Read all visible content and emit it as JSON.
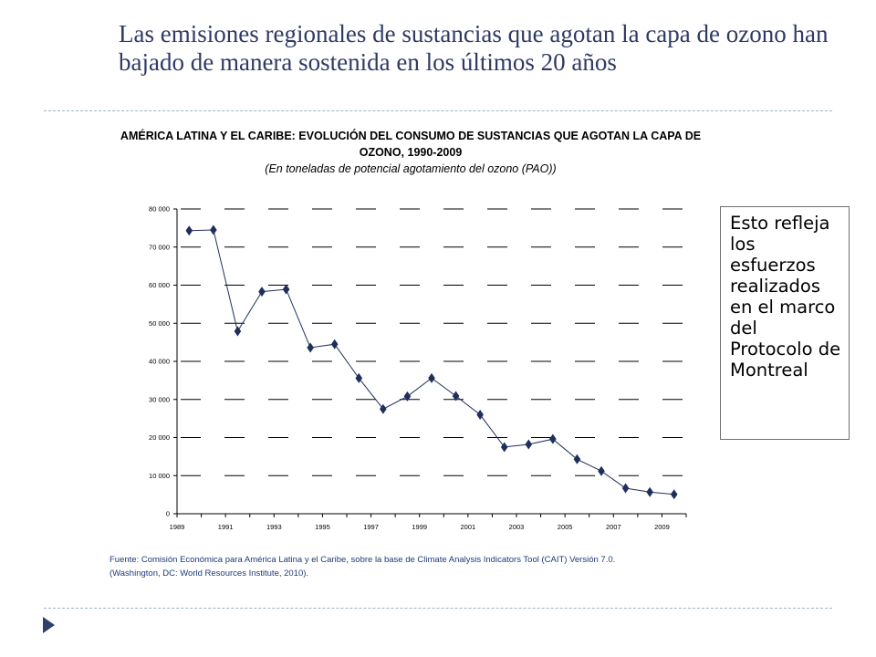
{
  "slide": {
    "title": "Las emisiones regionales de sustancias que agotan la capa de ozono han bajado de manera sostenida en los últimos 20 años",
    "note": "Esto refleja los esfuerzos realizados en el marco del Protocolo de Montreal",
    "source_line1": "Fuente: Comisión Económica para América Latina y el Caribe, sobre la base de Climate Analysis Indicators Tool (CAIT) Versión 7.0.",
    "source_line2": "(Washington, DC: World Resources Institute, 2010).",
    "accent_color": "#2f3a64",
    "divider_color": "#9db3c7",
    "bullet_icon": "triangle-bullet-icon"
  },
  "chart_data": {
    "type": "line",
    "title": "AMÉRICA LATINA Y EL CARIBE: EVOLUCIÓN DEL CONSUMO DE SUSTANCIAS QUE AGOTAN LA CAPA DE OZONO, 1990-2009",
    "subtitle": "(En toneladas de potencial agotamiento del ozono (PAO))",
    "xlabel": "",
    "ylabel": "",
    "x_ticks": [
      "1989",
      "1991",
      "1993",
      "1995",
      "1997",
      "1999",
      "2001",
      "2003",
      "2005",
      "2007",
      "2009"
    ],
    "y_ticks": [
      "0",
      "10 000",
      "20 000",
      "30 000",
      "40 000",
      "50 000",
      "60 000",
      "70 000",
      "80 000"
    ],
    "xlim": [
      1989,
      2009
    ],
    "ylim": [
      0,
      80000
    ],
    "grid": "horizontal-dashed",
    "line_color": "#1f2f5c",
    "series": [
      {
        "x": [
          1989.5,
          1990.5,
          1991.5,
          1992.5,
          1993.5,
          1994.5,
          1995.5,
          1996.5,
          1997.5,
          1998.5,
          1999.5,
          2000.5,
          2001.5,
          2002.5,
          2003.5,
          2004.5,
          2005.5,
          2006.5,
          2007.5,
          2008.5,
          2009.5
        ],
        "values": [
          74300,
          74500,
          47900,
          58300,
          58900,
          43600,
          44500,
          35600,
          27500,
          30800,
          35600,
          30900,
          26000,
          17500,
          18200,
          19600,
          14300,
          11200,
          6700,
          5700,
          5100
        ]
      }
    ]
  }
}
